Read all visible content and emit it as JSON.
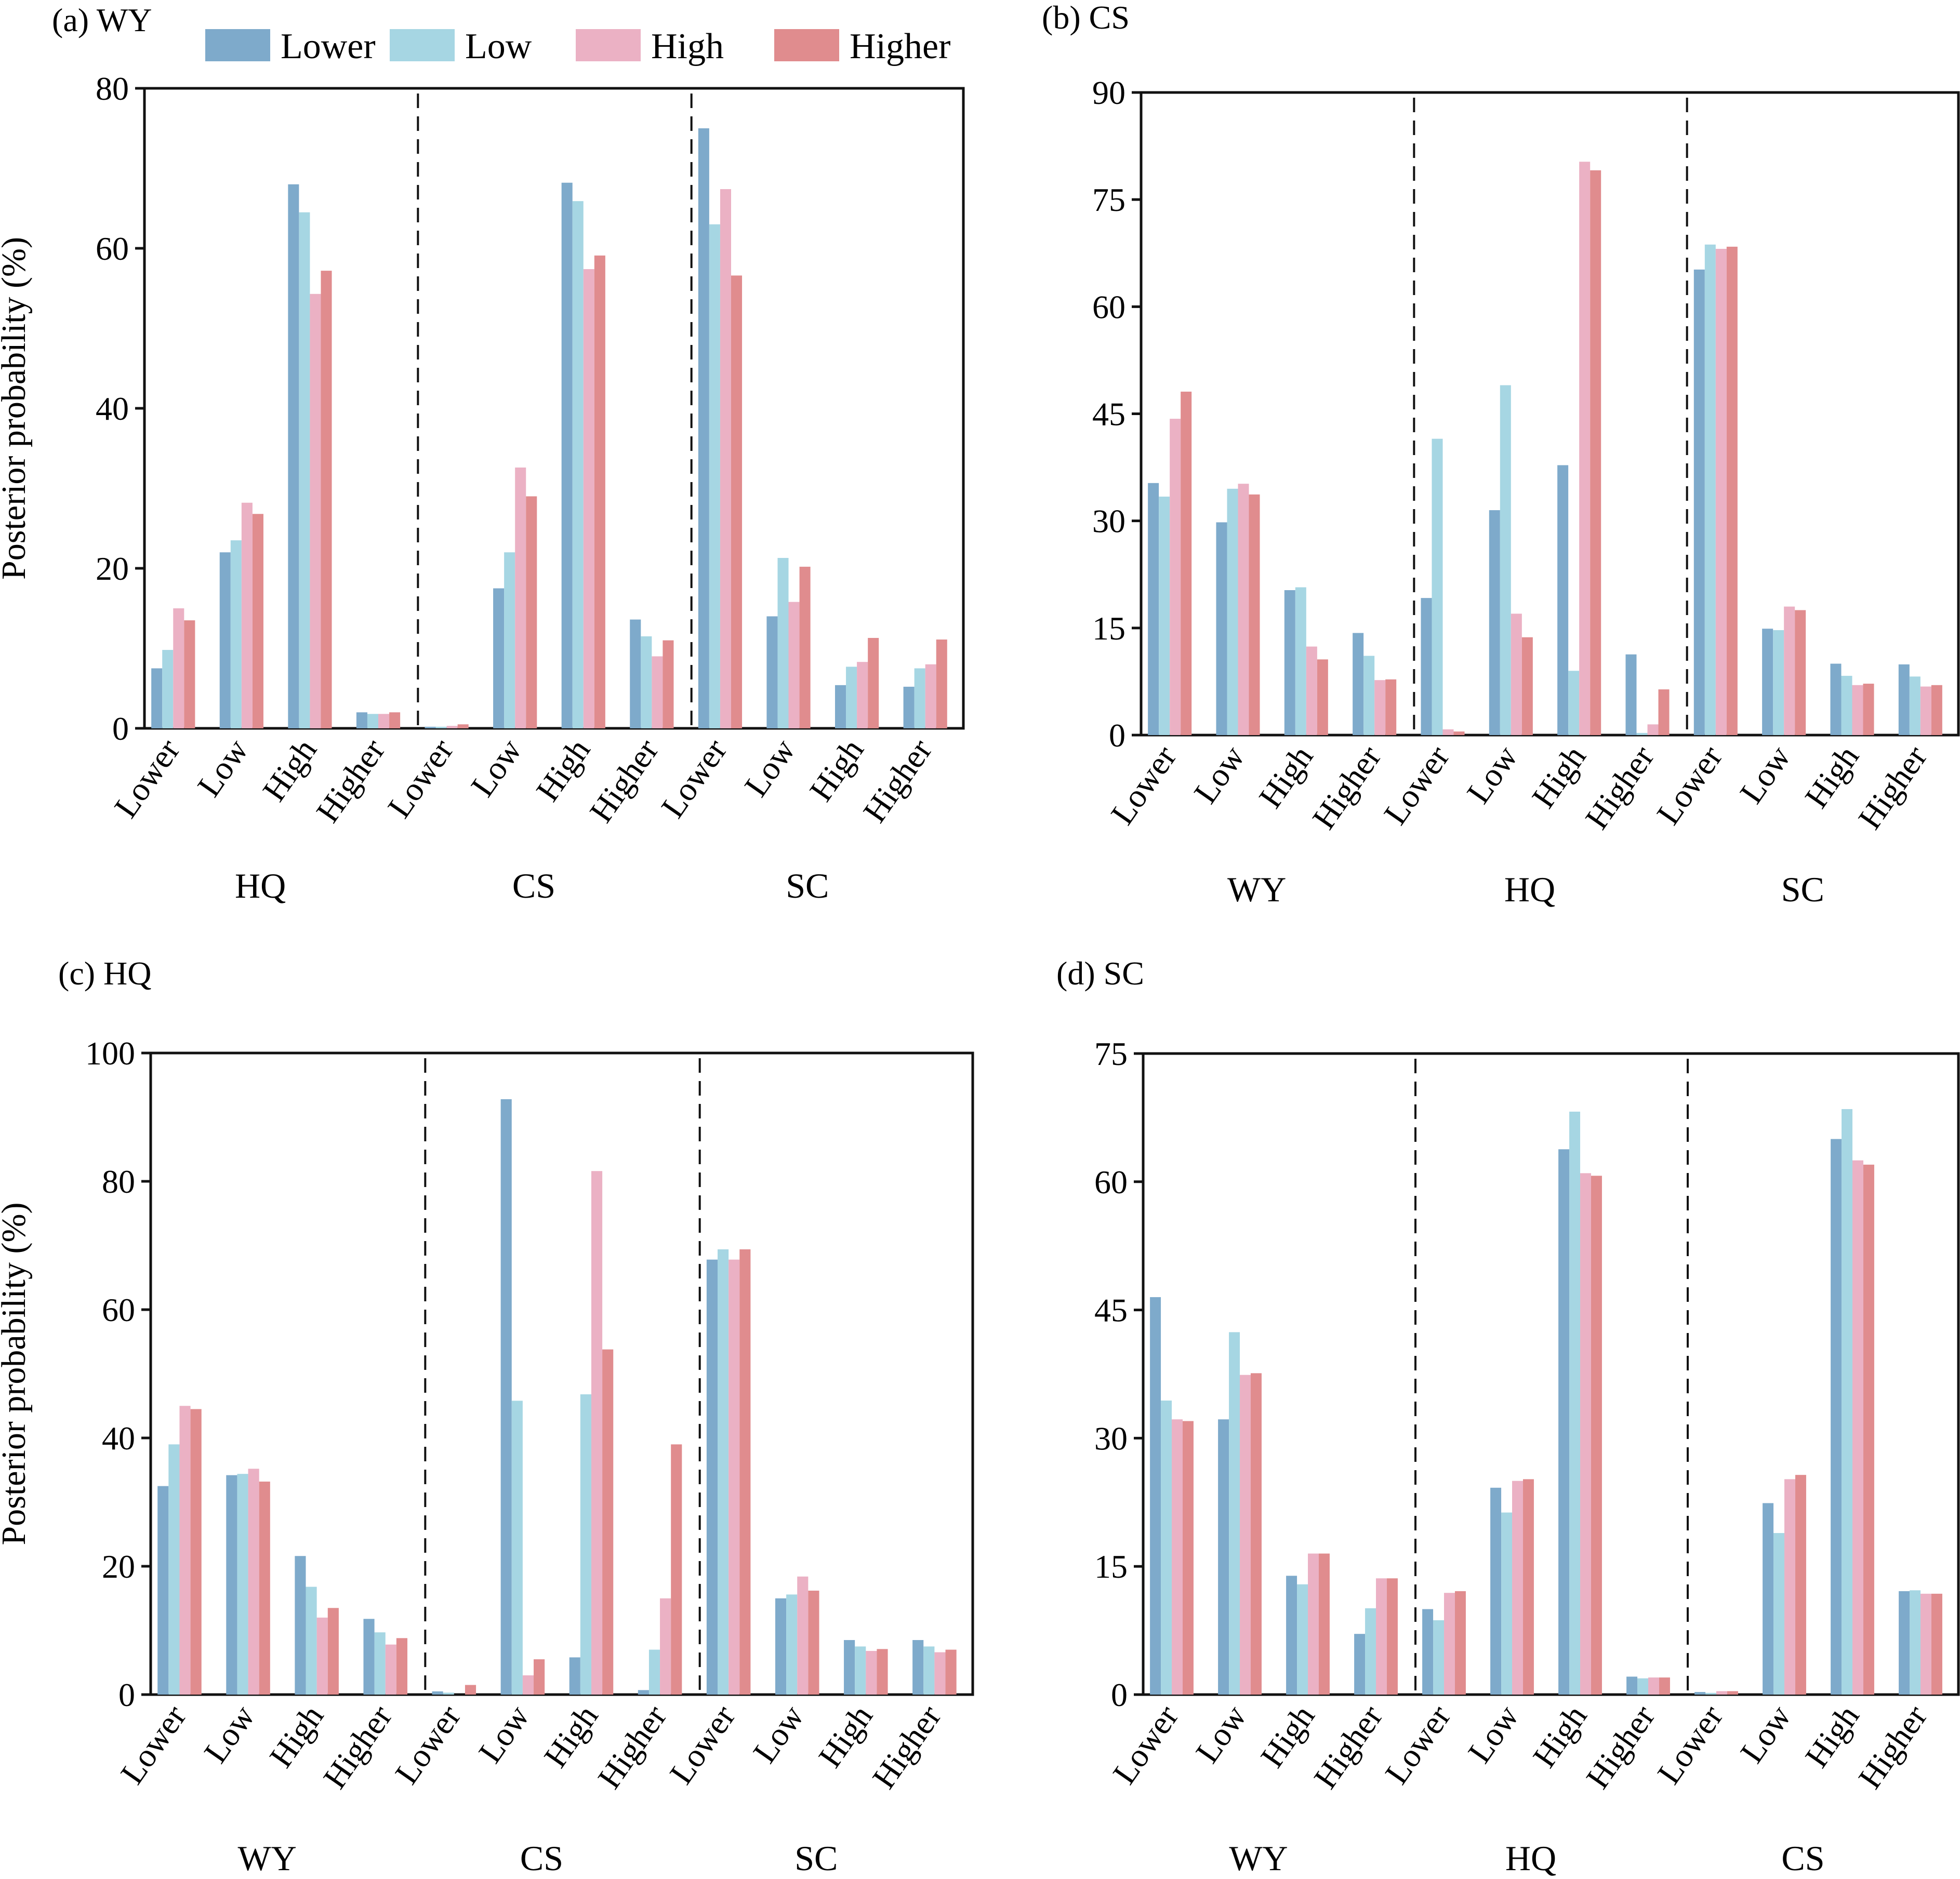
{
  "legend": {
    "items": [
      {
        "label": "Lower",
        "color": "#7EAACB"
      },
      {
        "label": "Low",
        "color": "#A6D6E3"
      },
      {
        "label": "High",
        "color": "#EBB1C4"
      },
      {
        "label": "Higher",
        "color": "#E08C8E"
      }
    ],
    "placement": "top (above panel a)"
  },
  "chart_data": [
    {
      "type": "bar",
      "title": "(a) WY",
      "ylabel": "Posterior probability (%)",
      "xlabel": "",
      "ylim": [
        0,
        80
      ],
      "yticks": [
        0,
        20,
        40,
        60,
        80
      ],
      "grid": false,
      "groups": [
        "HQ",
        "CS",
        "SC"
      ],
      "categories": [
        "Lower",
        "Low",
        "High",
        "Higher"
      ],
      "series_names": [
        "Lower",
        "Low",
        "High",
        "Higher"
      ],
      "values": [
        [
          [
            7.5,
            9.8,
            15.0,
            13.5
          ],
          [
            22.0,
            23.5,
            28.2,
            26.8
          ],
          [
            68.0,
            64.5,
            54.3,
            57.2
          ],
          [
            2.0,
            1.8,
            1.8,
            2.0
          ]
        ],
        [
          [
            0.2,
            0.2,
            0.3,
            0.5
          ],
          [
            17.5,
            22.0,
            32.6,
            29.0
          ],
          [
            68.2,
            65.9,
            57.4,
            59.1
          ],
          [
            13.6,
            11.5,
            9.0,
            11.0
          ]
        ],
        [
          [
            75.0,
            63.0,
            67.4,
            56.6
          ],
          [
            14.0,
            21.3,
            15.8,
            20.2
          ],
          [
            5.4,
            7.7,
            8.3,
            11.3
          ],
          [
            5.2,
            7.5,
            8.0,
            11.1
          ]
        ]
      ]
    },
    {
      "type": "bar",
      "title": "(b) CS",
      "ylabel": "",
      "xlabel": "",
      "ylim": [
        0,
        90
      ],
      "yticks": [
        0,
        15,
        30,
        45,
        60,
        75,
        90
      ],
      "grid": false,
      "groups": [
        "WY",
        "HQ",
        "SC"
      ],
      "categories": [
        "Lower",
        "Low",
        "High",
        "Higher"
      ],
      "series_names": [
        "Lower",
        "Low",
        "High",
        "Higher"
      ],
      "values": [
        [
          [
            35.3,
            33.4,
            44.3,
            48.1
          ],
          [
            29.8,
            34.5,
            35.2,
            33.7
          ],
          [
            20.3,
            20.7,
            12.4,
            10.6
          ],
          [
            14.3,
            11.1,
            7.7,
            7.8
          ]
        ],
        [
          [
            19.2,
            41.5,
            0.8,
            0.5
          ],
          [
            31.5,
            49.0,
            17.0,
            13.7
          ],
          [
            37.8,
            9.0,
            80.3,
            79.1
          ],
          [
            11.3,
            0.3,
            1.5,
            6.4
          ]
        ],
        [
          [
            65.2,
            68.7,
            68.1,
            68.4
          ],
          [
            14.9,
            14.7,
            18.0,
            17.5
          ],
          [
            10.0,
            8.3,
            7.0,
            7.2
          ],
          [
            9.9,
            8.2,
            6.8,
            7.0
          ]
        ]
      ]
    },
    {
      "type": "bar",
      "title": "(c) HQ",
      "ylabel": "Posterior probability (%)",
      "xlabel": "",
      "ylim": [
        0,
        100
      ],
      "yticks": [
        0,
        20,
        40,
        60,
        80,
        100
      ],
      "grid": false,
      "groups": [
        "WY",
        "CS",
        "SC"
      ],
      "categories": [
        "Lower",
        "Low",
        "High",
        "Higher"
      ],
      "series_names": [
        "Lower",
        "Low",
        "High",
        "Higher"
      ],
      "values": [
        [
          [
            32.5,
            39.0,
            45.0,
            44.5
          ],
          [
            34.2,
            34.4,
            35.2,
            33.2
          ],
          [
            21.6,
            16.8,
            12.0,
            13.5
          ],
          [
            11.8,
            9.7,
            7.8,
            8.8
          ]
        ],
        [
          [
            0.5,
            0.3,
            0.0,
            1.5
          ],
          [
            92.8,
            45.8,
            3.0,
            5.5
          ],
          [
            5.8,
            46.8,
            81.6,
            53.8
          ],
          [
            0.7,
            7.0,
            15.0,
            39.0
          ]
        ],
        [
          [
            67.8,
            69.4,
            67.8,
            69.4
          ],
          [
            15.0,
            15.6,
            18.4,
            16.2
          ],
          [
            8.5,
            7.5,
            6.8,
            7.1
          ],
          [
            8.5,
            7.5,
            6.6,
            7.0
          ]
        ]
      ]
    },
    {
      "type": "bar",
      "title": "(d) SC",
      "ylabel": "",
      "xlabel": "",
      "ylim": [
        0,
        75
      ],
      "yticks": [
        0,
        15,
        30,
        45,
        60,
        75
      ],
      "grid": false,
      "groups": [
        "WY",
        "HQ",
        "CS"
      ],
      "categories": [
        "Lower",
        "Low",
        "High",
        "Higher"
      ],
      "series_names": [
        "Lower",
        "Low",
        "High",
        "Higher"
      ],
      "values": [
        [
          [
            46.5,
            34.4,
            32.2,
            32.0
          ],
          [
            32.2,
            42.4,
            37.4,
            37.6
          ],
          [
            13.9,
            12.9,
            16.5,
            16.5
          ],
          [
            7.1,
            10.1,
            13.6,
            13.6
          ]
        ],
        [
          [
            10.0,
            8.7,
            11.9,
            12.1
          ],
          [
            24.2,
            21.3,
            25.0,
            25.2
          ],
          [
            63.8,
            68.2,
            61.0,
            60.7
          ],
          [
            2.1,
            1.9,
            2.0,
            2.0
          ]
        ],
        [
          [
            0.3,
            0.2,
            0.4,
            0.4
          ],
          [
            22.4,
            18.9,
            25.2,
            25.7
          ],
          [
            65.0,
            68.5,
            62.5,
            62.0
          ],
          [
            12.1,
            12.2,
            11.8,
            11.8
          ]
        ]
      ]
    }
  ]
}
